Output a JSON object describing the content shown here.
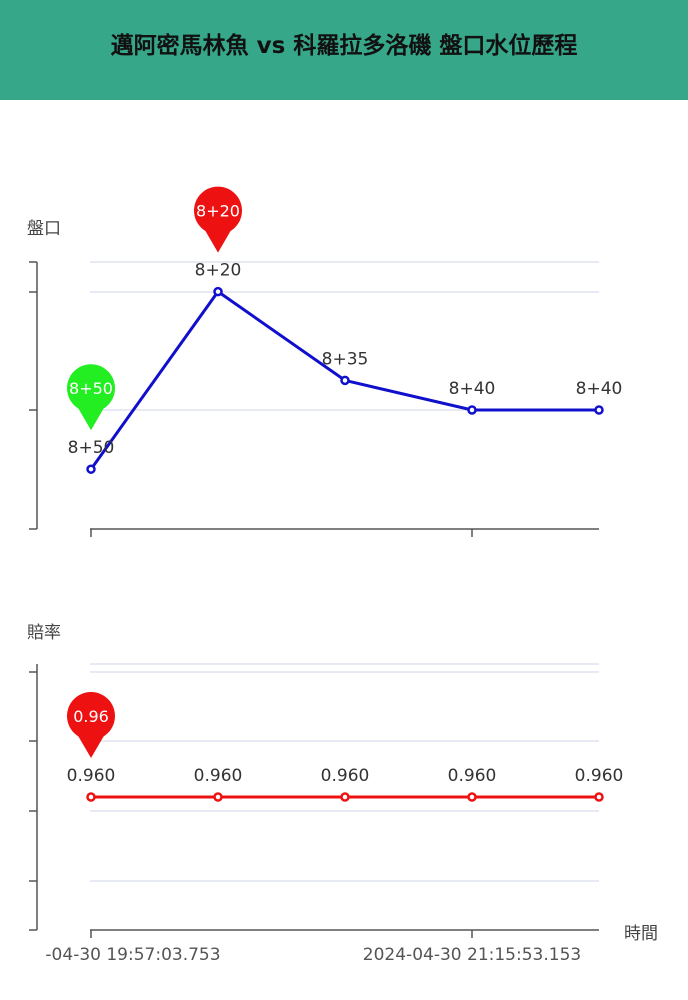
{
  "header": {
    "title": "邁阿密馬林魚 vs 科羅拉多洛磯 盤口水位歷程"
  },
  "colors": {
    "header_bg": "#37a78a",
    "handicap_line": "#1010cc",
    "odds_line": "#ee1111",
    "pin_green": "#22ee22",
    "pin_red": "#ee1111"
  },
  "x_axis_name": "時間",
  "chart_data": [
    {
      "type": "line",
      "ylabel": "盤口",
      "series": [
        {
          "values": [
            50,
            20,
            35,
            40,
            40
          ]
        }
      ],
      "labels": [
        "8+50",
        "8+20",
        "8+35",
        "8+40",
        "8+40"
      ],
      "ylim": [
        80,
        15
      ],
      "grid": true,
      "markers": [
        {
          "index": 0,
          "text": "8+50",
          "color": "#22ee22"
        },
        {
          "index": 1,
          "text": "8+20",
          "color": "#ee1111"
        }
      ]
    },
    {
      "type": "line",
      "ylabel": "賠率",
      "series": [
        {
          "values": [
            0.96,
            0.96,
            0.96,
            0.96,
            0.96
          ]
        }
      ],
      "labels": [
        "0.960",
        "0.960",
        "0.960",
        "0.960",
        "0.960"
      ],
      "grid": true,
      "markers": [
        {
          "index": 0,
          "text": "0.96",
          "color": "#ee1111"
        }
      ],
      "x_tick_labels": [
        "-04-30 19:57:03.753",
        "2024-04-30 21:15:53.153"
      ]
    }
  ]
}
